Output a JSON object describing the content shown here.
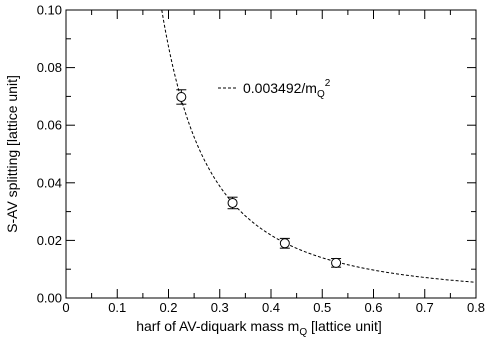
{
  "chart_data": {
    "type": "scatter",
    "title": "",
    "xlabel": "harf of AV-diquark mass m",
    "xlabel_sub": "Q",
    "xlabel_suffix": " [lattice unit]",
    "ylabel": "S-AV splitting [lattice unit]",
    "xlim": [
      0,
      0.8
    ],
    "ylim": [
      0,
      0.1
    ],
    "x_ticks": [
      "0",
      "0.1",
      "0.2",
      "0.3",
      "0.4",
      "0.5",
      "0.6",
      "0.7",
      "0.8"
    ],
    "y_ticks": [
      "0.00",
      "0.02",
      "0.04",
      "0.06",
      "0.08",
      "0.10"
    ],
    "grid": false,
    "legend_position": "top-right",
    "series": [
      {
        "kind": "points",
        "marker": "open-circle",
        "x": [
          0.225,
          0.325,
          0.427,
          0.527
        ],
        "y": [
          0.0698,
          0.033,
          0.019,
          0.0122
        ],
        "yerr": [
          0.0025,
          0.002,
          0.0017,
          0.0015
        ]
      },
      {
        "kind": "fit-curve",
        "style": "dashed",
        "coefficient": 0.003492,
        "legend_main": "0.003492/m",
        "legend_sub": "Q",
        "legend_sup": "2"
      }
    ]
  }
}
